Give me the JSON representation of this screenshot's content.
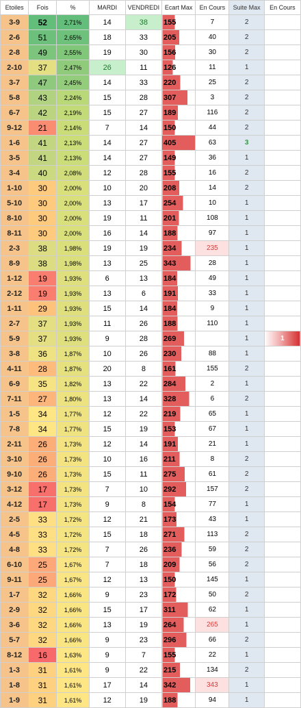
{
  "headers": [
    "Etoiles",
    "Fois",
    "%",
    "MARDI",
    "VENDREDI",
    "Ecart Max",
    "En Cours",
    "Suite Max",
    "En Cours"
  ],
  "colors": {
    "etoiles_bg": "#f6c48a",
    "ecart_bar": "#e35d5d",
    "suite_bg": "#dfe7f1"
  },
  "rows": [
    {
      "et": "3-9",
      "fo": "52",
      "pc": "2,71%",
      "ma": "14",
      "ve": "38",
      "em": "155",
      "ec": "7",
      "sm": "2",
      "su": ""
    },
    {
      "et": "2-6",
      "fo": "51",
      "pc": "2,65%",
      "ma": "18",
      "ve": "33",
      "em": "205",
      "ec": "40",
      "sm": "2",
      "su": ""
    },
    {
      "et": "2-8",
      "fo": "49",
      "pc": "2,55%",
      "ma": "19",
      "ve": "30",
      "em": "156",
      "ec": "30",
      "sm": "2",
      "su": ""
    },
    {
      "et": "2-10",
      "fo": "37",
      "pc": "2,47%",
      "ma": "26",
      "ve": "11",
      "em": "126",
      "ec": "11",
      "sm": "1",
      "su": ""
    },
    {
      "et": "3-7",
      "fo": "47",
      "pc": "2,45%",
      "ma": "14",
      "ve": "33",
      "em": "220",
      "ec": "25",
      "sm": "2",
      "su": ""
    },
    {
      "et": "5-8",
      "fo": "43",
      "pc": "2,24%",
      "ma": "15",
      "ve": "28",
      "em": "307",
      "ec": "3",
      "sm": "2",
      "su": ""
    },
    {
      "et": "6-7",
      "fo": "42",
      "pc": "2,19%",
      "ma": "15",
      "ve": "27",
      "em": "189",
      "ec": "116",
      "sm": "2",
      "su": ""
    },
    {
      "et": "9-12",
      "fo": "21",
      "pc": "2,14%",
      "ma": "7",
      "ve": "14",
      "em": "150",
      "ec": "44",
      "sm": "2",
      "su": ""
    },
    {
      "et": "1-6",
      "fo": "41",
      "pc": "2,13%",
      "ma": "14",
      "ve": "27",
      "em": "405",
      "ec": "63",
      "sm": "3",
      "su": ""
    },
    {
      "et": "3-5",
      "fo": "41",
      "pc": "2,13%",
      "ma": "14",
      "ve": "27",
      "em": "149",
      "ec": "36",
      "sm": "1",
      "su": ""
    },
    {
      "et": "3-4",
      "fo": "40",
      "pc": "2,08%",
      "ma": "12",
      "ve": "28",
      "em": "155",
      "ec": "16",
      "sm": "2",
      "su": ""
    },
    {
      "et": "1-10",
      "fo": "30",
      "pc": "2,00%",
      "ma": "10",
      "ve": "20",
      "em": "208",
      "ec": "14",
      "sm": "2",
      "su": ""
    },
    {
      "et": "5-10",
      "fo": "30",
      "pc": "2,00%",
      "ma": "13",
      "ve": "17",
      "em": "254",
      "ec": "10",
      "sm": "1",
      "su": ""
    },
    {
      "et": "8-10",
      "fo": "30",
      "pc": "2,00%",
      "ma": "19",
      "ve": "11",
      "em": "201",
      "ec": "108",
      "sm": "1",
      "su": ""
    },
    {
      "et": "8-11",
      "fo": "30",
      "pc": "2,00%",
      "ma": "16",
      "ve": "14",
      "em": "188",
      "ec": "97",
      "sm": "1",
      "su": ""
    },
    {
      "et": "2-3",
      "fo": "38",
      "pc": "1,98%",
      "ma": "19",
      "ve": "19",
      "em": "234",
      "ec": "235",
      "sm": "1",
      "su": ""
    },
    {
      "et": "8-9",
      "fo": "38",
      "pc": "1,98%",
      "ma": "13",
      "ve": "25",
      "em": "343",
      "ec": "28",
      "sm": "1",
      "su": ""
    },
    {
      "et": "1-12",
      "fo": "19",
      "pc": "1,93%",
      "ma": "6",
      "ve": "13",
      "em": "184",
      "ec": "49",
      "sm": "1",
      "su": ""
    },
    {
      "et": "2-12",
      "fo": "19",
      "pc": "1,93%",
      "ma": "13",
      "ve": "6",
      "em": "191",
      "ec": "33",
      "sm": "1",
      "su": ""
    },
    {
      "et": "1-11",
      "fo": "29",
      "pc": "1,93%",
      "ma": "15",
      "ve": "14",
      "em": "184",
      "ec": "9",
      "sm": "1",
      "su": ""
    },
    {
      "et": "2-7",
      "fo": "37",
      "pc": "1,93%",
      "ma": "11",
      "ve": "26",
      "em": "188",
      "ec": "110",
      "sm": "1",
      "su": ""
    },
    {
      "et": "5-9",
      "fo": "37",
      "pc": "1,93%",
      "ma": "9",
      "ve": "28",
      "em": "269",
      "ec": "",
      "sm": "1",
      "su": "1"
    },
    {
      "et": "3-8",
      "fo": "36",
      "pc": "1,87%",
      "ma": "10",
      "ve": "26",
      "em": "230",
      "ec": "88",
      "sm": "1",
      "su": ""
    },
    {
      "et": "4-11",
      "fo": "28",
      "pc": "1,87%",
      "ma": "20",
      "ve": "8",
      "em": "161",
      "ec": "155",
      "sm": "2",
      "su": ""
    },
    {
      "et": "6-9",
      "fo": "35",
      "pc": "1,82%",
      "ma": "13",
      "ve": "22",
      "em": "284",
      "ec": "2",
      "sm": "1",
      "su": ""
    },
    {
      "et": "7-11",
      "fo": "27",
      "pc": "1,80%",
      "ma": "13",
      "ve": "14",
      "em": "328",
      "ec": "6",
      "sm": "2",
      "su": ""
    },
    {
      "et": "1-5",
      "fo": "34",
      "pc": "1,77%",
      "ma": "12",
      "ve": "22",
      "em": "219",
      "ec": "65",
      "sm": "1",
      "su": ""
    },
    {
      "et": "7-8",
      "fo": "34",
      "pc": "1,77%",
      "ma": "15",
      "ve": "19",
      "em": "153",
      "ec": "67",
      "sm": "1",
      "su": ""
    },
    {
      "et": "2-11",
      "fo": "26",
      "pc": "1,73%",
      "ma": "12",
      "ve": "14",
      "em": "191",
      "ec": "21",
      "sm": "1",
      "su": ""
    },
    {
      "et": "3-10",
      "fo": "26",
      "pc": "1,73%",
      "ma": "10",
      "ve": "16",
      "em": "211",
      "ec": "8",
      "sm": "2",
      "su": ""
    },
    {
      "et": "9-10",
      "fo": "26",
      "pc": "1,73%",
      "ma": "15",
      "ve": "11",
      "em": "275",
      "ec": "61",
      "sm": "2",
      "su": ""
    },
    {
      "et": "3-12",
      "fo": "17",
      "pc": "1,73%",
      "ma": "7",
      "ve": "10",
      "em": "292",
      "ec": "157",
      "sm": "2",
      "su": ""
    },
    {
      "et": "4-12",
      "fo": "17",
      "pc": "1,73%",
      "ma": "9",
      "ve": "8",
      "em": "154",
      "ec": "77",
      "sm": "1",
      "su": ""
    },
    {
      "et": "2-5",
      "fo": "33",
      "pc": "1,72%",
      "ma": "12",
      "ve": "21",
      "em": "173",
      "ec": "43",
      "sm": "1",
      "su": ""
    },
    {
      "et": "4-5",
      "fo": "33",
      "pc": "1,72%",
      "ma": "15",
      "ve": "18",
      "em": "271",
      "ec": "113",
      "sm": "2",
      "su": ""
    },
    {
      "et": "4-8",
      "fo": "33",
      "pc": "1,72%",
      "ma": "7",
      "ve": "26",
      "em": "236",
      "ec": "59",
      "sm": "2",
      "su": ""
    },
    {
      "et": "6-10",
      "fo": "25",
      "pc": "1,67%",
      "ma": "7",
      "ve": "18",
      "em": "209",
      "ec": "56",
      "sm": "2",
      "su": ""
    },
    {
      "et": "9-11",
      "fo": "25",
      "pc": "1,67%",
      "ma": "12",
      "ve": "13",
      "em": "150",
      "ec": "145",
      "sm": "1",
      "su": ""
    },
    {
      "et": "1-7",
      "fo": "32",
      "pc": "1,66%",
      "ma": "9",
      "ve": "23",
      "em": "172",
      "ec": "50",
      "sm": "2",
      "su": ""
    },
    {
      "et": "2-9",
      "fo": "32",
      "pc": "1,66%",
      "ma": "15",
      "ve": "17",
      "em": "311",
      "ec": "62",
      "sm": "1",
      "su": ""
    },
    {
      "et": "3-6",
      "fo": "32",
      "pc": "1,66%",
      "ma": "13",
      "ve": "19",
      "em": "264",
      "ec": "265",
      "sm": "1",
      "su": ""
    },
    {
      "et": "5-7",
      "fo": "32",
      "pc": "1,66%",
      "ma": "9",
      "ve": "23",
      "em": "296",
      "ec": "66",
      "sm": "2",
      "su": ""
    },
    {
      "et": "8-12",
      "fo": "16",
      "pc": "1,63%",
      "ma": "9",
      "ve": "7",
      "em": "155",
      "ec": "22",
      "sm": "1",
      "su": ""
    },
    {
      "et": "1-3",
      "fo": "31",
      "pc": "1,61%",
      "ma": "9",
      "ve": "22",
      "em": "215",
      "ec": "134",
      "sm": "2",
      "su": ""
    },
    {
      "et": "1-8",
      "fo": "31",
      "pc": "1,61%",
      "ma": "17",
      "ve": "14",
      "em": "342",
      "ec": "343",
      "sm": "1",
      "su": ""
    },
    {
      "et": "1-9",
      "fo": "31",
      "pc": "1,61%",
      "ma": "12",
      "ve": "19",
      "em": "188",
      "ec": "94",
      "sm": "1",
      "su": ""
    }
  ]
}
